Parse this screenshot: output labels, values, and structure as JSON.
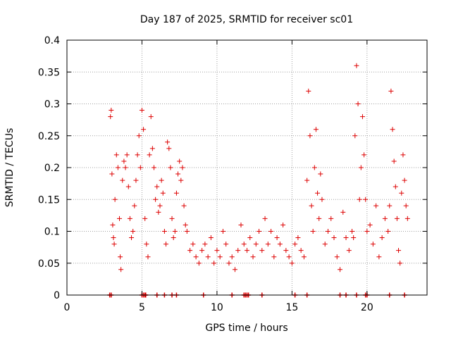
{
  "chart_data": {
    "type": "scatter",
    "title": "Day 187 of 2025, SRMTID for receiver sc01",
    "xlabel": "GPS time / hours",
    "ylabel": "SRMTID / TECUs",
    "xlim": [
      0,
      24
    ],
    "ylim": [
      0,
      0.4
    ],
    "xticks": [
      0,
      5,
      10,
      15,
      20
    ],
    "xtick_labels": [
      "0",
      "5",
      "10",
      "15",
      "20"
    ],
    "yticks": [
      0,
      0.05,
      0.1,
      0.15,
      0.2,
      0.25,
      0.3,
      0.35,
      0.4
    ],
    "ytick_labels": [
      "0",
      "0.05",
      "0.1",
      "0.15",
      "0.2",
      "0.25",
      "0.3",
      "0.35",
      "0.4"
    ],
    "grid": true,
    "marker": "plus",
    "color": "#dd0000",
    "series": [
      {
        "name": "SRMTID",
        "x": [
          2.9,
          2.95,
          3.0,
          3.05,
          3.1,
          3.15,
          3.2,
          3.3,
          3.4,
          3.5,
          3.55,
          3.6,
          3.7,
          3.8,
          3.9,
          4.0,
          4.1,
          4.2,
          4.3,
          4.4,
          4.5,
          4.6,
          4.7,
          4.8,
          4.9,
          5.0,
          5.1,
          5.2,
          5.3,
          5.4,
          5.5,
          5.6,
          5.7,
          5.8,
          5.9,
          6.0,
          6.1,
          6.2,
          6.3,
          6.4,
          6.5,
          6.6,
          6.7,
          6.8,
          6.9,
          7.0,
          7.1,
          7.2,
          7.3,
          7.4,
          7.5,
          7.6,
          7.7,
          7.8,
          7.9,
          8.0,
          8.2,
          8.4,
          8.6,
          8.8,
          9.0,
          9.2,
          9.4,
          9.6,
          9.8,
          10.0,
          10.2,
          10.4,
          10.6,
          10.8,
          11.0,
          11.2,
          11.4,
          11.6,
          11.8,
          12.0,
          12.2,
          12.4,
          12.6,
          12.8,
          13.0,
          13.2,
          13.4,
          13.6,
          13.8,
          14.0,
          14.2,
          14.4,
          14.6,
          14.8,
          15.0,
          15.2,
          15.4,
          15.6,
          15.8,
          16.0,
          16.1,
          16.2,
          16.3,
          16.4,
          16.5,
          16.6,
          16.7,
          16.8,
          16.9,
          17.0,
          17.2,
          17.4,
          17.6,
          17.8,
          18.0,
          18.2,
          18.4,
          18.6,
          18.8,
          19.0,
          19.1,
          19.2,
          19.3,
          19.4,
          19.5,
          19.6,
          19.7,
          19.8,
          19.9,
          20.0,
          20.2,
          20.4,
          20.6,
          20.8,
          21.0,
          21.2,
          21.4,
          21.5,
          21.6,
          21.7,
          21.8,
          21.9,
          22.0,
          22.1,
          22.2,
          22.3,
          22.4,
          22.5,
          22.6,
          22.7
        ],
        "y": [
          0.28,
          0.29,
          0.19,
          0.11,
          0.09,
          0.08,
          0.15,
          0.22,
          0.2,
          0.12,
          0.06,
          0.04,
          0.18,
          0.21,
          0.2,
          0.22,
          0.17,
          0.12,
          0.09,
          0.1,
          0.14,
          0.18,
          0.22,
          0.25,
          0.2,
          0.29,
          0.26,
          0.12,
          0.08,
          0.06,
          0.22,
          0.28,
          0.23,
          0.2,
          0.15,
          0.17,
          0.13,
          0.14,
          0.18,
          0.16,
          0.1,
          0.08,
          0.24,
          0.23,
          0.2,
          0.12,
          0.09,
          0.1,
          0.16,
          0.19,
          0.21,
          0.18,
          0.2,
          0.14,
          0.11,
          0.1,
          0.07,
          0.08,
          0.06,
          0.05,
          0.07,
          0.08,
          0.06,
          0.09,
          0.05,
          0.07,
          0.06,
          0.1,
          0.08,
          0.05,
          0.06,
          0.04,
          0.07,
          0.11,
          0.08,
          0.07,
          0.09,
          0.06,
          0.08,
          0.1,
          0.07,
          0.12,
          0.08,
          0.1,
          0.06,
          0.09,
          0.08,
          0.11,
          0.07,
          0.06,
          0.05,
          0.08,
          0.09,
          0.07,
          0.06,
          0.18,
          0.32,
          0.25,
          0.14,
          0.1,
          0.2,
          0.26,
          0.16,
          0.12,
          0.19,
          0.15,
          0.08,
          0.1,
          0.12,
          0.09,
          0.06,
          0.04,
          0.13,
          0.09,
          0.07,
          0.1,
          0.09,
          0.25,
          0.36,
          0.3,
          0.15,
          0.2,
          0.28,
          0.22,
          0.15,
          0.1,
          0.11,
          0.08,
          0.14,
          0.06,
          0.09,
          0.12,
          0.1,
          0.14,
          0.32,
          0.26,
          0.21,
          0.17,
          0.12,
          0.07,
          0.05,
          0.16,
          0.22,
          0.18,
          0.14,
          0.12
        ]
      }
    ],
    "zero_marks_x": [
      2.85,
      2.95,
      5.0,
      5.1,
      5.2,
      5.25,
      6.0,
      6.5,
      7.0,
      7.3,
      9.1,
      11.0,
      11.8,
      11.9,
      12.0,
      12.1,
      13.0,
      15.2,
      16.0,
      18.2,
      18.6,
      19.3,
      19.9,
      20.0,
      21.5,
      22.5
    ]
  }
}
